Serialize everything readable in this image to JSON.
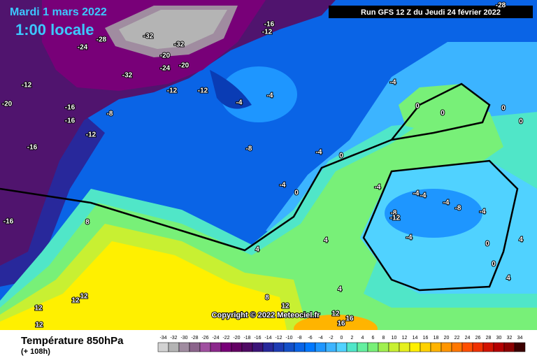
{
  "header": {
    "date": "Mardi 1 mars 2022",
    "time": "1:00 locale",
    "run": "Run GFS 12 Z du Jeudi 24 février 2022"
  },
  "map": {
    "copyright": "Copyright © 2022 Meteociel.fr",
    "contour_labels": [
      -28,
      -32,
      -32,
      -24,
      -20,
      -24,
      -20,
      -32,
      -16,
      -12,
      -28,
      -12,
      -12,
      -12,
      -4,
      -4,
      -20,
      -16,
      -8,
      -16,
      -12,
      -16,
      -8,
      -4,
      0,
      -4,
      0,
      -16,
      8,
      4,
      4,
      4,
      8,
      12,
      12,
      12,
      12,
      12,
      16,
      16,
      12,
      -4,
      0,
      0,
      0,
      0,
      -4,
      -4,
      -4,
      -8,
      -12,
      -8,
      -4,
      -4,
      -4,
      0,
      4,
      0,
      4
    ]
  },
  "legend": {
    "title": "Température 850hPa",
    "subtitle": "(+ 108h)",
    "ticks": [
      -34,
      -32,
      -30,
      -28,
      -26,
      -24,
      -22,
      -20,
      -18,
      -16,
      -14,
      -12,
      -10,
      -8,
      -6,
      -4,
      -2,
      0,
      2,
      4,
      6,
      8,
      10,
      12,
      14,
      16,
      18,
      20,
      22,
      24,
      26,
      28,
      30,
      32,
      34
    ],
    "colors": [
      "#d2d2d2",
      "#b4b4b4",
      "#a08ca0",
      "#8c648c",
      "#a050a0",
      "#8c288c",
      "#780078",
      "#640064",
      "#500a64",
      "#3c1478",
      "#28289b",
      "#1e3cb4",
      "#1450c8",
      "#0a64e6",
      "#0078ff",
      "#1e96ff",
      "#3cb4ff",
      "#50d2ff",
      "#50e6c8",
      "#64f0a0",
      "#78f078",
      "#a0f050",
      "#c8f032",
      "#e6f01e",
      "#fff000",
      "#ffd200",
      "#ffb400",
      "#ff9600",
      "#ff7800",
      "#ff5000",
      "#f03200",
      "#d21400",
      "#b40000",
      "#8c0000",
      "#3c0000"
    ]
  }
}
